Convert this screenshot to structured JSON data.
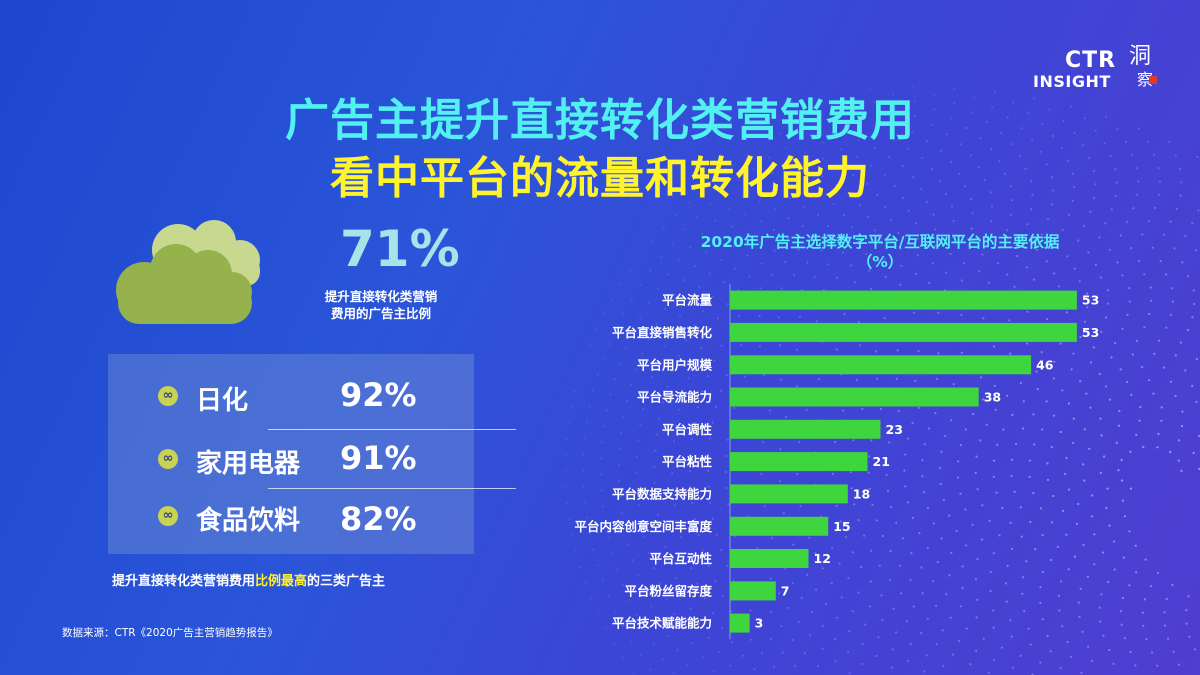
{
  "header": {
    "title_line1": "广告主提升直接转化类营销费用",
    "title_line2": "看中平台的流量和转化能力"
  },
  "brand": {
    "ctr": "CTR",
    "insight": "INSIGHT",
    "char1": "洞",
    "char2": "察"
  },
  "highlight": {
    "percent": "71%",
    "caption_line1": "提升直接转化类营销",
    "caption_line2": "费用的广告主比例",
    "value": 71
  },
  "categories_panel": {
    "badge_symbol": "∞",
    "items": [
      {
        "name": "日化",
        "value": "92%"
      },
      {
        "name": "家用电器",
        "value": "91%"
      },
      {
        "name": "食品饮料",
        "value": "82%"
      }
    ],
    "caption_before": "提升直接转化类营销费用",
    "caption_highlight": "比例最高",
    "caption_after": "的三类广告主"
  },
  "source": "数据来源：CTR《2020广告主营销趋势报告》",
  "colors": {
    "bar": "#3fd53f",
    "title_cyan": "#53f0f2",
    "title_yellow": "#fff32c",
    "badge": "#c8d44f",
    "cloud_front": "#95b24d",
    "cloud_back": "#c8d88f"
  },
  "icons": {
    "cloud": "cloud-icon",
    "badge": "infinity-badge-icon"
  },
  "chart_data": {
    "type": "bar",
    "orientation": "horizontal",
    "title": "2020年广告主选择数字平台/互联网平台的主要依据",
    "subtitle": "（%）",
    "categories": [
      "平台流量",
      "平台直接销售转化",
      "平台用户规模",
      "平台导流能力",
      "平台调性",
      "平台粘性",
      "平台数据支持能力",
      "平台内容创意空间丰富度",
      "平台互动性",
      "平台粉丝留存度",
      "平台技术赋能能力"
    ],
    "values": [
      53,
      53,
      46,
      38,
      23,
      21,
      18,
      15,
      12,
      7,
      3
    ],
    "xlim": [
      0,
      55
    ],
    "grid": false,
    "legend": "none",
    "data_labels": true
  }
}
